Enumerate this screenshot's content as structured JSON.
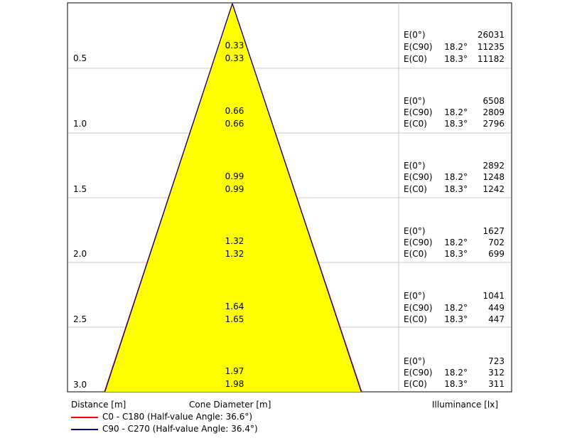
{
  "rows": [
    {
      "distance": "0.5",
      "diam_c90": "0.33",
      "diam_c0": "0.33",
      "e0_label": "E(0°)",
      "e0_value": "26031",
      "ec90_label": "E(C90)",
      "ec90_angle": "18.2°",
      "ec90_value": "11235",
      "ec0_label": "E(C0)",
      "ec0_angle": "18.3°",
      "ec0_value": "11182"
    },
    {
      "distance": "1.0",
      "diam_c90": "0.66",
      "diam_c0": "0.66",
      "e0_label": "E(0°)",
      "e0_value": "6508",
      "ec90_label": "E(C90)",
      "ec90_angle": "18.2°",
      "ec90_value": "2809",
      "ec0_label": "E(C0)",
      "ec0_angle": "18.3°",
      "ec0_value": "2796"
    },
    {
      "distance": "1.5",
      "diam_c90": "0.99",
      "diam_c0": "0.99",
      "e0_label": "E(0°)",
      "e0_value": "2892",
      "ec90_label": "E(C90)",
      "ec90_angle": "18.2°",
      "ec90_value": "1248",
      "ec0_label": "E(C0)",
      "ec0_angle": "18.3°",
      "ec0_value": "1242"
    },
    {
      "distance": "2.0",
      "diam_c90": "1.32",
      "diam_c0": "1.32",
      "e0_label": "E(0°)",
      "e0_value": "1627",
      "ec90_label": "E(C90)",
      "ec90_angle": "18.2°",
      "ec90_value": "702",
      "ec0_label": "E(C0)",
      "ec0_angle": "18.3°",
      "ec0_value": "699"
    },
    {
      "distance": "2.5",
      "diam_c90": "1.64",
      "diam_c0": "1.65",
      "e0_label": "E(0°)",
      "e0_value": "1041",
      "ec90_label": "E(C90)",
      "ec90_angle": "18.2°",
      "ec90_value": "449",
      "ec0_label": "E(C0)",
      "ec0_angle": "18.3°",
      "ec0_value": "447"
    },
    {
      "distance": "3.0",
      "diam_c90": "1.97",
      "diam_c0": "1.98",
      "e0_label": "E(0°)",
      "e0_value": "723",
      "ec90_label": "E(C90)",
      "ec90_angle": "18.2°",
      "ec90_value": "312",
      "ec0_label": "E(C0)",
      "ec0_angle": "18.3°",
      "ec0_value": "311"
    }
  ],
  "footer": {
    "distance_label": "Distance [m]",
    "cone_label": "Cone Diameter [m]",
    "illuminance_label": "Illuminance [lx]"
  },
  "legend": [
    {
      "text": "C0 - C180 (Half-value Angle: 36.6°)",
      "color": "#ff0000"
    },
    {
      "text": "C90 - C270 (Half-value Angle: 36.4°)",
      "color": "#000080"
    }
  ],
  "colors": {
    "cone_fill": "#ffff00",
    "grid": "#c8c8c8",
    "frame": "#000000"
  }
}
